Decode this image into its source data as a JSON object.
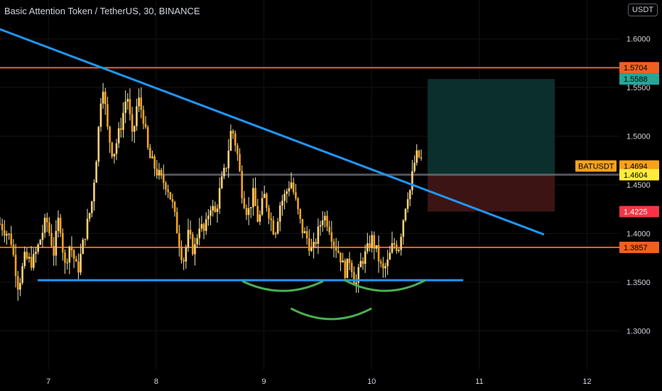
{
  "header": {
    "title": "Basic Attention Token / TetherUS, 30, BINANCE",
    "currency_button": "USDT"
  },
  "chart_data": {
    "type": "candlestick",
    "symbol": "BATUSDT",
    "ylim": [
      1.26,
      1.64
    ],
    "xlim": [
      6.55,
      12.3
    ],
    "x_ticks": [
      "7",
      "8",
      "9",
      "10",
      "11",
      "12"
    ],
    "x_tick_values": [
      7,
      8,
      9,
      10,
      11,
      12
    ],
    "y_ticks": [
      "1.3000",
      "1.3500",
      "1.4000",
      "1.4500",
      "1.5000",
      "1.5500",
      "1.6000"
    ],
    "y_tick_values": [
      1.3,
      1.35,
      1.4,
      1.45,
      1.5,
      1.55,
      1.6
    ],
    "horizontal_levels": [
      {
        "value": 1.5704,
        "label": "1.5704",
        "color": "#f06020"
      },
      {
        "value": 1.3857,
        "label": "1.3857",
        "color": "#f06020"
      }
    ],
    "price_labels": [
      {
        "value": 1.5588,
        "label": "1.5588",
        "color": "#26a69a",
        "text_color": "#000000"
      },
      {
        "value": 1.4694,
        "label": "1.4694",
        "name": "BATUSDT",
        "color": "#f7a21b",
        "text_color": "#000000"
      },
      {
        "value": 1.4604,
        "label": "1.4604",
        "color": "#ffeb3b",
        "text_color": "#000000"
      },
      {
        "value": 1.4225,
        "label": "1.4225",
        "color": "#f23645",
        "text_color": "#ffffff"
      }
    ],
    "trendlines": [
      {
        "from": [
          6.5,
          1.612
        ],
        "to": [
          11.6,
          1.399
        ],
        "color": "#2196f3"
      },
      {
        "from": [
          6.9,
          1.352
        ],
        "to": [
          10.85,
          1.352
        ],
        "color": "#2196f3"
      }
    ],
    "position_box": {
      "x_start": 10.52,
      "x_end": 11.7,
      "entry": 1.4604,
      "target": 1.5588,
      "stop": 1.4225,
      "profit_color": "#0a2f2c",
      "loss_color": "#3d1414"
    },
    "arcs": [
      {
        "x_start": 8.8,
        "x_end": 9.55,
        "y_edge": 1.351,
        "y_bottom": 1.341,
        "color": "#4caf50"
      },
      {
        "x_start": 9.25,
        "x_end": 10.0,
        "y_edge": 1.323,
        "y_bottom": 1.312,
        "color": "#4caf50"
      },
      {
        "x_start": 9.75,
        "x_end": 10.5,
        "y_edge": 1.352,
        "y_bottom": 1.341,
        "color": "#4caf50"
      }
    ],
    "price_path": [
      [
        6.55,
        1.41
      ],
      [
        6.65,
        1.395
      ],
      [
        6.72,
        1.345
      ],
      [
        6.78,
        1.375
      ],
      [
        6.85,
        1.37
      ],
      [
        6.9,
        1.385
      ],
      [
        6.98,
        1.415
      ],
      [
        7.05,
        1.38
      ],
      [
        7.1,
        1.42
      ],
      [
        7.15,
        1.365
      ],
      [
        7.2,
        1.39
      ],
      [
        7.27,
        1.36
      ],
      [
        7.33,
        1.395
      ],
      [
        7.4,
        1.43
      ],
      [
        7.45,
        1.485
      ],
      [
        7.5,
        1.56
      ],
      [
        7.55,
        1.505
      ],
      [
        7.6,
        1.48
      ],
      [
        7.67,
        1.51
      ],
      [
        7.73,
        1.545
      ],
      [
        7.78,
        1.495
      ],
      [
        7.83,
        1.54
      ],
      [
        7.88,
        1.52
      ],
      [
        7.93,
        1.48
      ],
      [
        8.0,
        1.465
      ],
      [
        8.05,
        1.455
      ],
      [
        8.1,
        1.45
      ],
      [
        8.15,
        1.43
      ],
      [
        8.2,
        1.4
      ],
      [
        8.25,
        1.37
      ],
      [
        8.3,
        1.4
      ],
      [
        8.35,
        1.38
      ],
      [
        8.4,
        1.41
      ],
      [
        8.45,
        1.4
      ],
      [
        8.5,
        1.43
      ],
      [
        8.55,
        1.42
      ],
      [
        8.6,
        1.45
      ],
      [
        8.65,
        1.47
      ],
      [
        8.7,
        1.51
      ],
      [
        8.75,
        1.485
      ],
      [
        8.8,
        1.44
      ],
      [
        8.85,
        1.42
      ],
      [
        8.9,
        1.44
      ],
      [
        8.95,
        1.41
      ],
      [
        9.0,
        1.44
      ],
      [
        9.05,
        1.42
      ],
      [
        9.1,
        1.4
      ],
      [
        9.15,
        1.43
      ],
      [
        9.2,
        1.44
      ],
      [
        9.25,
        1.455
      ],
      [
        9.3,
        1.43
      ],
      [
        9.35,
        1.405
      ],
      [
        9.4,
        1.395
      ],
      [
        9.45,
        1.38
      ],
      [
        9.5,
        1.4
      ],
      [
        9.55,
        1.42
      ],
      [
        9.6,
        1.41
      ],
      [
        9.65,
        1.39
      ],
      [
        9.7,
        1.38
      ],
      [
        9.75,
        1.36
      ],
      [
        9.8,
        1.375
      ],
      [
        9.85,
        1.345
      ],
      [
        9.9,
        1.37
      ],
      [
        9.95,
        1.38
      ],
      [
        10.0,
        1.395
      ],
      [
        10.05,
        1.38
      ],
      [
        10.1,
        1.36
      ],
      [
        10.15,
        1.37
      ],
      [
        10.2,
        1.39
      ],
      [
        10.25,
        1.385
      ],
      [
        10.3,
        1.42
      ],
      [
        10.33,
        1.44
      ],
      [
        10.36,
        1.445
      ],
      [
        10.39,
        1.47
      ],
      [
        10.42,
        1.48
      ],
      [
        10.45,
        1.478
      ],
      [
        10.48,
        1.47
      ]
    ]
  }
}
